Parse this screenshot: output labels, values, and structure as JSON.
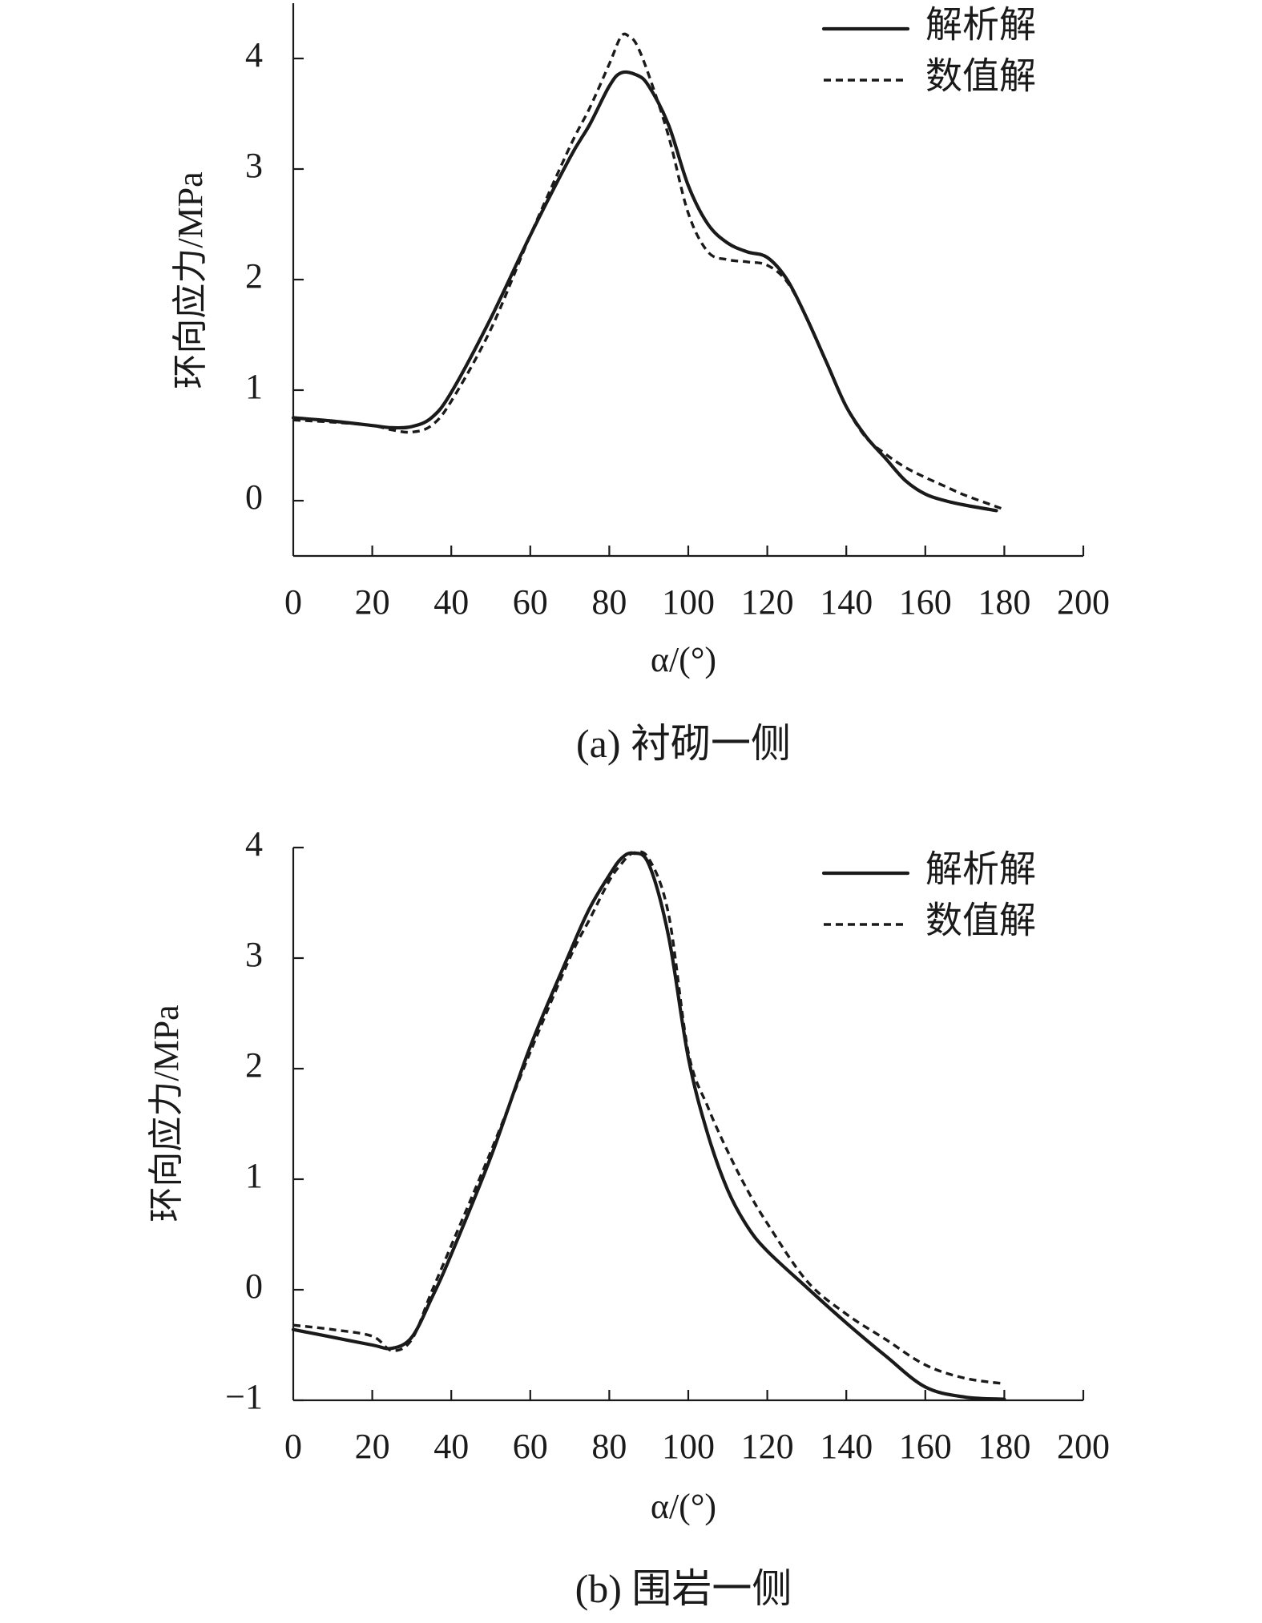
{
  "chart_data": [
    {
      "type": "line",
      "caption": "(a) 衬砌一侧",
      "xlabel": "α/(°)",
      "ylabel": "环向应力/MPa",
      "xlim": [
        0,
        200
      ],
      "ylim": [
        -0.5,
        4.5
      ],
      "xticks": [
        0,
        20,
        40,
        60,
        80,
        100,
        120,
        140,
        160,
        180,
        200
      ],
      "yticks": [
        0,
        1,
        2,
        3,
        4
      ],
      "legend_position": "top-right",
      "series": [
        {
          "name": "解析解",
          "style": "solid",
          "x": [
            0,
            10,
            20,
            25,
            30,
            35,
            40,
            50,
            60,
            70,
            75,
            80,
            83,
            87,
            90,
            95,
            100,
            105,
            110,
            115,
            120,
            125,
            130,
            135,
            140,
            145,
            150,
            155,
            160,
            165,
            170,
            178
          ],
          "y": [
            0.75,
            0.72,
            0.68,
            0.66,
            0.67,
            0.75,
            0.98,
            1.65,
            2.4,
            3.1,
            3.4,
            3.75,
            3.87,
            3.85,
            3.75,
            3.4,
            2.85,
            2.5,
            2.33,
            2.25,
            2.2,
            2.0,
            1.65,
            1.25,
            0.85,
            0.58,
            0.38,
            0.18,
            0.06,
            0.0,
            -0.04,
            -0.09
          ]
        },
        {
          "name": "数值解",
          "style": "dashed",
          "x": [
            0,
            10,
            20,
            25,
            30,
            35,
            40,
            50,
            60,
            70,
            75,
            80,
            83,
            85,
            87,
            90,
            95,
            100,
            105,
            110,
            115,
            120,
            125,
            130,
            135,
            140,
            145,
            150,
            155,
            160,
            165,
            170,
            180
          ],
          "y": [
            0.73,
            0.71,
            0.68,
            0.64,
            0.62,
            0.68,
            0.9,
            1.55,
            2.4,
            3.2,
            3.55,
            3.95,
            4.2,
            4.2,
            4.12,
            3.85,
            3.3,
            2.6,
            2.25,
            2.18,
            2.16,
            2.13,
            1.98,
            1.65,
            1.25,
            0.85,
            0.57,
            0.42,
            0.3,
            0.21,
            0.13,
            0.05,
            -0.08
          ]
        }
      ]
    },
    {
      "type": "line",
      "caption": "(b) 围岩一侧",
      "xlabel": "α/(°)",
      "ylabel": "环向应力/MPa",
      "xlim": [
        0,
        200
      ],
      "ylim": [
        -1,
        4
      ],
      "xticks": [
        0,
        20,
        40,
        60,
        80,
        100,
        120,
        140,
        160,
        180,
        200
      ],
      "yticks": [
        -1,
        0,
        1,
        2,
        3,
        4
      ],
      "ytick_labels": [
        "−1",
        "0",
        "1",
        "2",
        "3",
        "4"
      ],
      "legend_position": "top-right",
      "series": [
        {
          "name": "解析解",
          "style": "solid",
          "x": [
            0,
            10,
            20,
            25,
            30,
            35,
            40,
            50,
            60,
            70,
            75,
            80,
            83,
            86,
            90,
            95,
            100,
            105,
            110,
            115,
            120,
            130,
            140,
            150,
            160,
            170,
            180
          ],
          "y": [
            -0.36,
            -0.43,
            -0.5,
            -0.53,
            -0.43,
            -0.08,
            0.32,
            1.2,
            2.2,
            3.05,
            3.45,
            3.75,
            3.9,
            3.95,
            3.85,
            3.2,
            2.1,
            1.4,
            0.9,
            0.57,
            0.35,
            0.02,
            -0.3,
            -0.6,
            -0.88,
            -0.97,
            -0.99
          ]
        },
        {
          "name": "数值解",
          "style": "dashed",
          "x": [
            0,
            10,
            20,
            25,
            30,
            35,
            40,
            50,
            60,
            70,
            75,
            80,
            83,
            86,
            90,
            95,
            100,
            105,
            110,
            115,
            120,
            130,
            140,
            150,
            160,
            170,
            180
          ],
          "y": [
            -0.32,
            -0.36,
            -0.42,
            -0.55,
            -0.45,
            -0.02,
            0.4,
            1.25,
            2.15,
            3.0,
            3.35,
            3.7,
            3.85,
            3.95,
            3.9,
            3.4,
            2.15,
            1.65,
            1.25,
            0.9,
            0.6,
            0.08,
            -0.22,
            -0.45,
            -0.68,
            -0.8,
            -0.85
          ]
        }
      ]
    }
  ]
}
